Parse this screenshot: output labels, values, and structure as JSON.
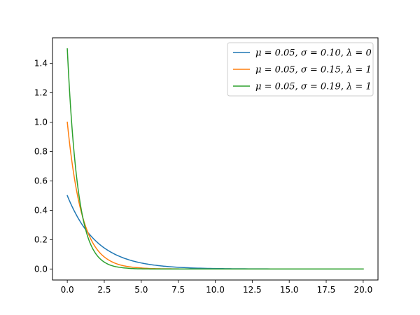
{
  "chart_data": {
    "type": "line",
    "title": "",
    "xlabel": "",
    "ylabel": "",
    "xlim": [
      -1,
      21
    ],
    "ylim": [
      -0.075,
      1.575
    ],
    "grid": false,
    "legend_position": "top-right",
    "x_ticks": [
      0,
      2.5,
      5,
      7.5,
      10,
      12.5,
      15,
      17.5,
      20
    ],
    "x_tick_labels": [
      "0.0",
      "2.5",
      "5.0",
      "7.5",
      "10.0",
      "12.5",
      "15.0",
      "17.5",
      "20.0"
    ],
    "y_ticks": [
      0,
      0.2,
      0.4,
      0.6,
      0.8,
      1.0,
      1.2,
      1.4
    ],
    "y_tick_labels": [
      "0.0",
      "0.2",
      "0.4",
      "0.6",
      "0.8",
      "1.0",
      "1.2",
      "1.4"
    ],
    "series": [
      {
        "name": "μ = 0.05,  σ = 0.10,  λ = 0",
        "color": "#1f77b4",
        "x": [
          0,
          0.5,
          1,
          1.5,
          2,
          2.5,
          3,
          4,
          5,
          6,
          7,
          8,
          10,
          12,
          15,
          20
        ],
        "y": [
          0.5,
          0.39,
          0.303,
          0.236,
          0.184,
          0.143,
          0.112,
          0.068,
          0.041,
          0.025,
          0.015,
          0.009,
          0.003,
          0.001,
          0.0,
          0.0
        ]
      },
      {
        "name": "μ = 0.05,  σ = 0.15,  λ = 1",
        "color": "#ff7f0e",
        "x": [
          0,
          0.25,
          0.5,
          0.75,
          1,
          1.5,
          2,
          2.5,
          3,
          4,
          5,
          6,
          7,
          8,
          10,
          20
        ],
        "y": [
          1.0,
          0.779,
          0.607,
          0.472,
          0.368,
          0.223,
          0.135,
          0.082,
          0.05,
          0.018,
          0.007,
          0.002,
          0.001,
          0.0,
          0.0,
          0.0
        ]
      },
      {
        "name": "μ = 0.05,  σ = 0.19,  λ = 1",
        "color": "#2ca02c",
        "x": [
          0,
          0.25,
          0.5,
          0.75,
          1,
          1.25,
          1.5,
          2,
          2.5,
          3,
          4,
          5,
          6,
          8,
          10,
          20
        ],
        "y": [
          1.5,
          1.06,
          0.75,
          0.53,
          0.375,
          0.265,
          0.187,
          0.094,
          0.047,
          0.023,
          0.006,
          0.001,
          0.0,
          0.0,
          0.0,
          0.0
        ]
      }
    ]
  }
}
